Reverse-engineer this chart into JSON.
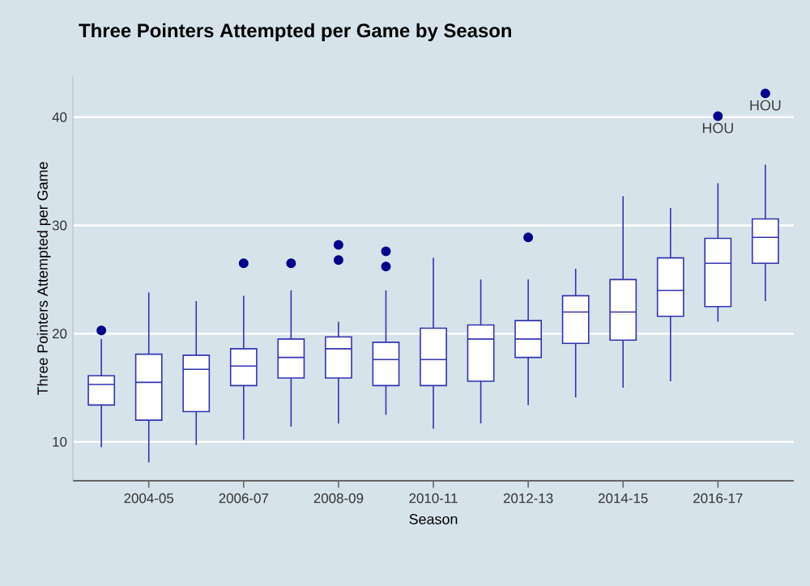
{
  "chart_data": {
    "type": "box",
    "title": "Three Pointers Attempted per Game by Season",
    "xlabel": "Season",
    "ylabel": "Three Pointers Attempted per Game",
    "categories": [
      null,
      "2004-05",
      null,
      "2006-07",
      null,
      "2008-09",
      null,
      "2010-11",
      null,
      "2012-13",
      null,
      "2014-15",
      null,
      "2016-17",
      null
    ],
    "color": "#3333b0",
    "boxes": [
      {
        "low": 9.5,
        "q1": 13.4,
        "median": 15.3,
        "q3": 16.1,
        "high": 19.5,
        "outliers": [
          20.3
        ]
      },
      {
        "low": 8.1,
        "q1": 12.0,
        "median": 15.5,
        "q3": 18.1,
        "high": 23.8
      },
      {
        "low": 9.7,
        "q1": 12.8,
        "median": 16.7,
        "q3": 18.0,
        "high": 23.0
      },
      {
        "low": 10.2,
        "q1": 15.2,
        "median": 17.0,
        "q3": 18.6,
        "high": 23.5,
        "outliers": [
          26.5
        ]
      },
      {
        "low": 11.4,
        "q1": 15.9,
        "median": 17.8,
        "q3": 19.5,
        "high": 24.0,
        "outliers": [
          26.5
        ]
      },
      {
        "low": 11.7,
        "q1": 15.9,
        "median": 18.6,
        "q3": 19.7,
        "high": 21.1,
        "outliers": [
          26.8,
          28.2
        ]
      },
      {
        "low": 12.5,
        "q1": 15.2,
        "median": 17.6,
        "q3": 19.2,
        "high": 24.0,
        "outliers": [
          26.2,
          27.6
        ]
      },
      {
        "low": 11.2,
        "q1": 15.2,
        "median": 17.6,
        "q3": 20.5,
        "high": 27.0
      },
      {
        "low": 11.7,
        "q1": 15.6,
        "median": 19.5,
        "q3": 20.8,
        "high": 25.0
      },
      {
        "low": 13.4,
        "q1": 17.8,
        "median": 19.5,
        "q3": 21.2,
        "high": 25.0,
        "outliers": [
          28.9
        ]
      },
      {
        "low": 14.1,
        "q1": 19.1,
        "median": 22.0,
        "q3": 23.5,
        "high": 26.0
      },
      {
        "low": 15.0,
        "q1": 19.4,
        "median": 22.0,
        "q3": 25.0,
        "high": 32.7
      },
      {
        "low": 15.6,
        "q1": 21.6,
        "median": 24.0,
        "q3": 27.0,
        "high": 31.6
      },
      {
        "low": 21.1,
        "q1": 22.5,
        "median": 26.5,
        "q3": 28.8,
        "high": 33.9,
        "outliers": [
          40.1
        ]
      },
      {
        "low": 23.0,
        "q1": 26.5,
        "median": 28.9,
        "q3": 30.6,
        "high": 35.6,
        "outliers": [
          42.2
        ]
      }
    ],
    "annotations": [
      "HOU",
      "HOU"
    ],
    "ylim": [
      6.4,
      43.8
    ],
    "yticks": [
      10,
      20,
      30,
      40
    ],
    "grid": "y"
  }
}
